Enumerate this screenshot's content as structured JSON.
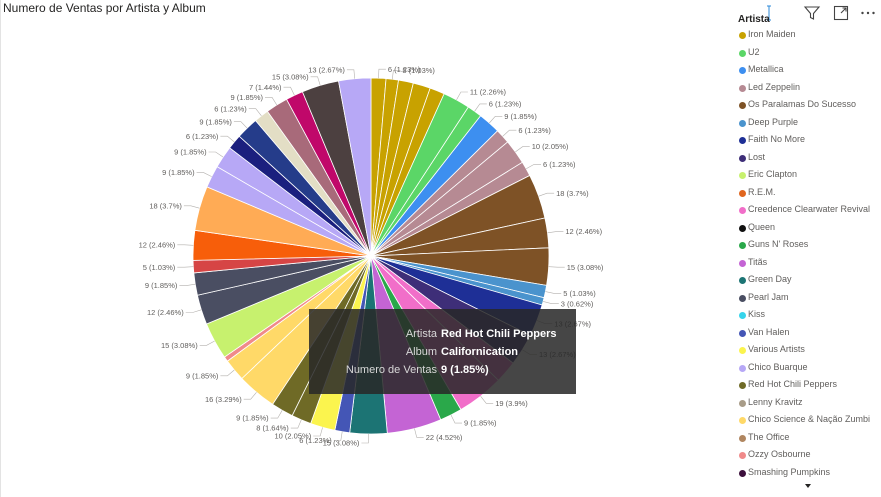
{
  "title": "Numero de Ventas por Artista y Album",
  "toolbar": {
    "icons": [
      "filter-icon",
      "focus-mode-icon",
      "more-options-icon"
    ]
  },
  "legend": {
    "title": "Artista",
    "items": [
      {
        "label": "Iron Maiden",
        "color": "#C8A200"
      },
      {
        "label": "U2",
        "color": "#5BD667"
      },
      {
        "label": "Metallica",
        "color": "#3D8FF0"
      },
      {
        "label": "Led Zeppelin",
        "color": "#B68A93"
      },
      {
        "label": "Os Paralamas Do Sucesso",
        "color": "#7E5226"
      },
      {
        "label": "Deep Purple",
        "color": "#4A93CD"
      },
      {
        "label": "Faith No More",
        "color": "#1E2F96"
      },
      {
        "label": "Lost",
        "color": "#3E2E78"
      },
      {
        "label": "Eric Clapton",
        "color": "#C7F16E"
      },
      {
        "label": "R.E.M.",
        "color": "#E0661E"
      },
      {
        "label": "Creedence Clearwater Revival",
        "color": "#F16EC9"
      },
      {
        "label": "Queen",
        "color": "#111111"
      },
      {
        "label": "Guns N' Roses",
        "color": "#2AA84A"
      },
      {
        "label": "Titãs",
        "color": "#C464D4"
      },
      {
        "label": "Green Day",
        "color": "#1C7474"
      },
      {
        "label": "Pearl Jam",
        "color": "#4A4E62"
      },
      {
        "label": "Kiss",
        "color": "#36D4EB"
      },
      {
        "label": "Van Halen",
        "color": "#4456B6"
      },
      {
        "label": "Various Artists",
        "color": "#FBF44E"
      },
      {
        "label": "Chico Buarque",
        "color": "#B7A8F6"
      },
      {
        "label": "Red Hot Chili Peppers",
        "color": "#6F6A26"
      },
      {
        "label": "Lenny Kravitz",
        "color": "#A89C88"
      },
      {
        "label": "Chico Science & Nação Zumbi",
        "color": "#FFD968"
      },
      {
        "label": "The Office",
        "color": "#B08660"
      },
      {
        "label": "Ozzy Osbourne",
        "color": "#F08A8A"
      },
      {
        "label": "Smashing Pumpkins",
        "color": "#3C0F3C"
      }
    ]
  },
  "tooltip": {
    "rows": [
      {
        "key": "Artista",
        "value": "Red Hot Chili Peppers"
      },
      {
        "key": "Album",
        "value": "Californication"
      },
      {
        "key": "Numero de Ventas",
        "value": "9 (1.85%)"
      }
    ]
  },
  "chart_data": {
    "type": "pie",
    "title": "Numero de Ventas por Artista y Album",
    "legend_title": "Artista",
    "legend_position": "right",
    "slices": [
      {
        "value": 6,
        "label": "6 (1.23%)",
        "color": "#C8A200"
      },
      {
        "value": 5,
        "label": "5 (1.03%)",
        "color": "#C8A200"
      },
      {
        "value": 6,
        "label": "",
        "color": "#C8A200"
      },
      {
        "value": 7,
        "label": "",
        "color": "#C8A200"
      },
      {
        "value": 6,
        "label": "",
        "color": "#C8A200"
      },
      {
        "value": 11,
        "label": "11 (2.26%)",
        "color": "#5BD667"
      },
      {
        "value": 6,
        "label": "6 (1.23%)",
        "color": "#5BD667"
      },
      {
        "value": 9,
        "label": "9 (1.85%)",
        "color": "#3D8FF0"
      },
      {
        "value": 6,
        "label": "6 (1.23%)",
        "color": "#B68A93"
      },
      {
        "value": 10,
        "label": "10 (2.05%)",
        "color": "#B68A93"
      },
      {
        "value": 6,
        "label": "6 (1.23%)",
        "color": "#B68A93"
      },
      {
        "value": 18,
        "label": "18 (3.7%)",
        "color": "#7E5226"
      },
      {
        "value": 12,
        "label": "12 (2.46%)",
        "color": "#7E5226"
      },
      {
        "value": 15,
        "label": "15 (3.08%)",
        "color": "#7E5226"
      },
      {
        "value": 5,
        "label": "5 (1.03%)",
        "color": "#4A93CD"
      },
      {
        "value": 3,
        "label": "3 (0.62%)",
        "color": "#4A93CD"
      },
      {
        "value": 13,
        "label": "13 (2.67%)",
        "color": "#1E2F96"
      },
      {
        "value": 13,
        "label": "13 (2.67%)",
        "color": "#3E2E78"
      },
      {
        "value": 9,
        "label": "",
        "color": "#F16EC9"
      },
      {
        "value": 19,
        "label": "19 (3.9%)",
        "color": "#F16EC9"
      },
      {
        "value": 9,
        "label": "9 (1.85%)",
        "color": "#2AA84A"
      },
      {
        "value": 22,
        "label": "22 (4.52%)",
        "color": "#C464D4"
      },
      {
        "value": 15,
        "label": "15 (3.08%)",
        "color": "#1C7474"
      },
      {
        "value": 6,
        "label": "6 (1.23%)",
        "color": "#4456B6"
      },
      {
        "value": 10,
        "label": "10 (2.05%)",
        "color": "#FBF44E"
      },
      {
        "value": 8,
        "label": "8 (1.64%)",
        "color": "#6F6A26"
      },
      {
        "value": 9,
        "label": "9 (1.85%)",
        "color": "#6F6A26"
      },
      {
        "value": 16,
        "label": "16 (3.29%)",
        "color": "#FFD968"
      },
      {
        "value": 9,
        "label": "9 (1.85%)",
        "color": "#FFD968"
      },
      {
        "value": 2,
        "label": "",
        "color": "#F08A8A"
      },
      {
        "value": 15,
        "label": "15 (3.08%)",
        "color": "#C7F16E"
      },
      {
        "value": 12,
        "label": "12 (2.46%)",
        "color": "#4A4E62"
      },
      {
        "value": 9,
        "label": "9 (1.85%)",
        "color": "#4A4E62"
      },
      {
        "value": 5,
        "label": "5 (1.03%)",
        "color": "#D64545"
      },
      {
        "value": 12,
        "label": "12 (2.46%)",
        "color": "#F75E0A"
      },
      {
        "value": 18,
        "label": "18 (3.7%)",
        "color": "#FFAB55"
      },
      {
        "value": 9,
        "label": "9 (1.85%)",
        "color": "#B7A8F6"
      },
      {
        "value": 9,
        "label": "9 (1.85%)",
        "color": "#B7A8F6"
      },
      {
        "value": 6,
        "label": "6 (1.23%)",
        "color": "#1B1F7E"
      },
      {
        "value": 9,
        "label": "9 (1.85%)",
        "color": "#253C8A"
      },
      {
        "value": 6,
        "label": "6 (1.23%)",
        "color": "#E3DEC5"
      },
      {
        "value": 9,
        "label": "9 (1.85%)",
        "color": "#A86A7A"
      },
      {
        "value": 7,
        "label": "7 (1.44%)",
        "color": "#C0086A"
      },
      {
        "value": 15,
        "label": "15 (3.08%)",
        "color": "#4C4040"
      },
      {
        "value": 13,
        "label": "13 (2.67%)",
        "color": "#B7A8F6"
      }
    ]
  }
}
